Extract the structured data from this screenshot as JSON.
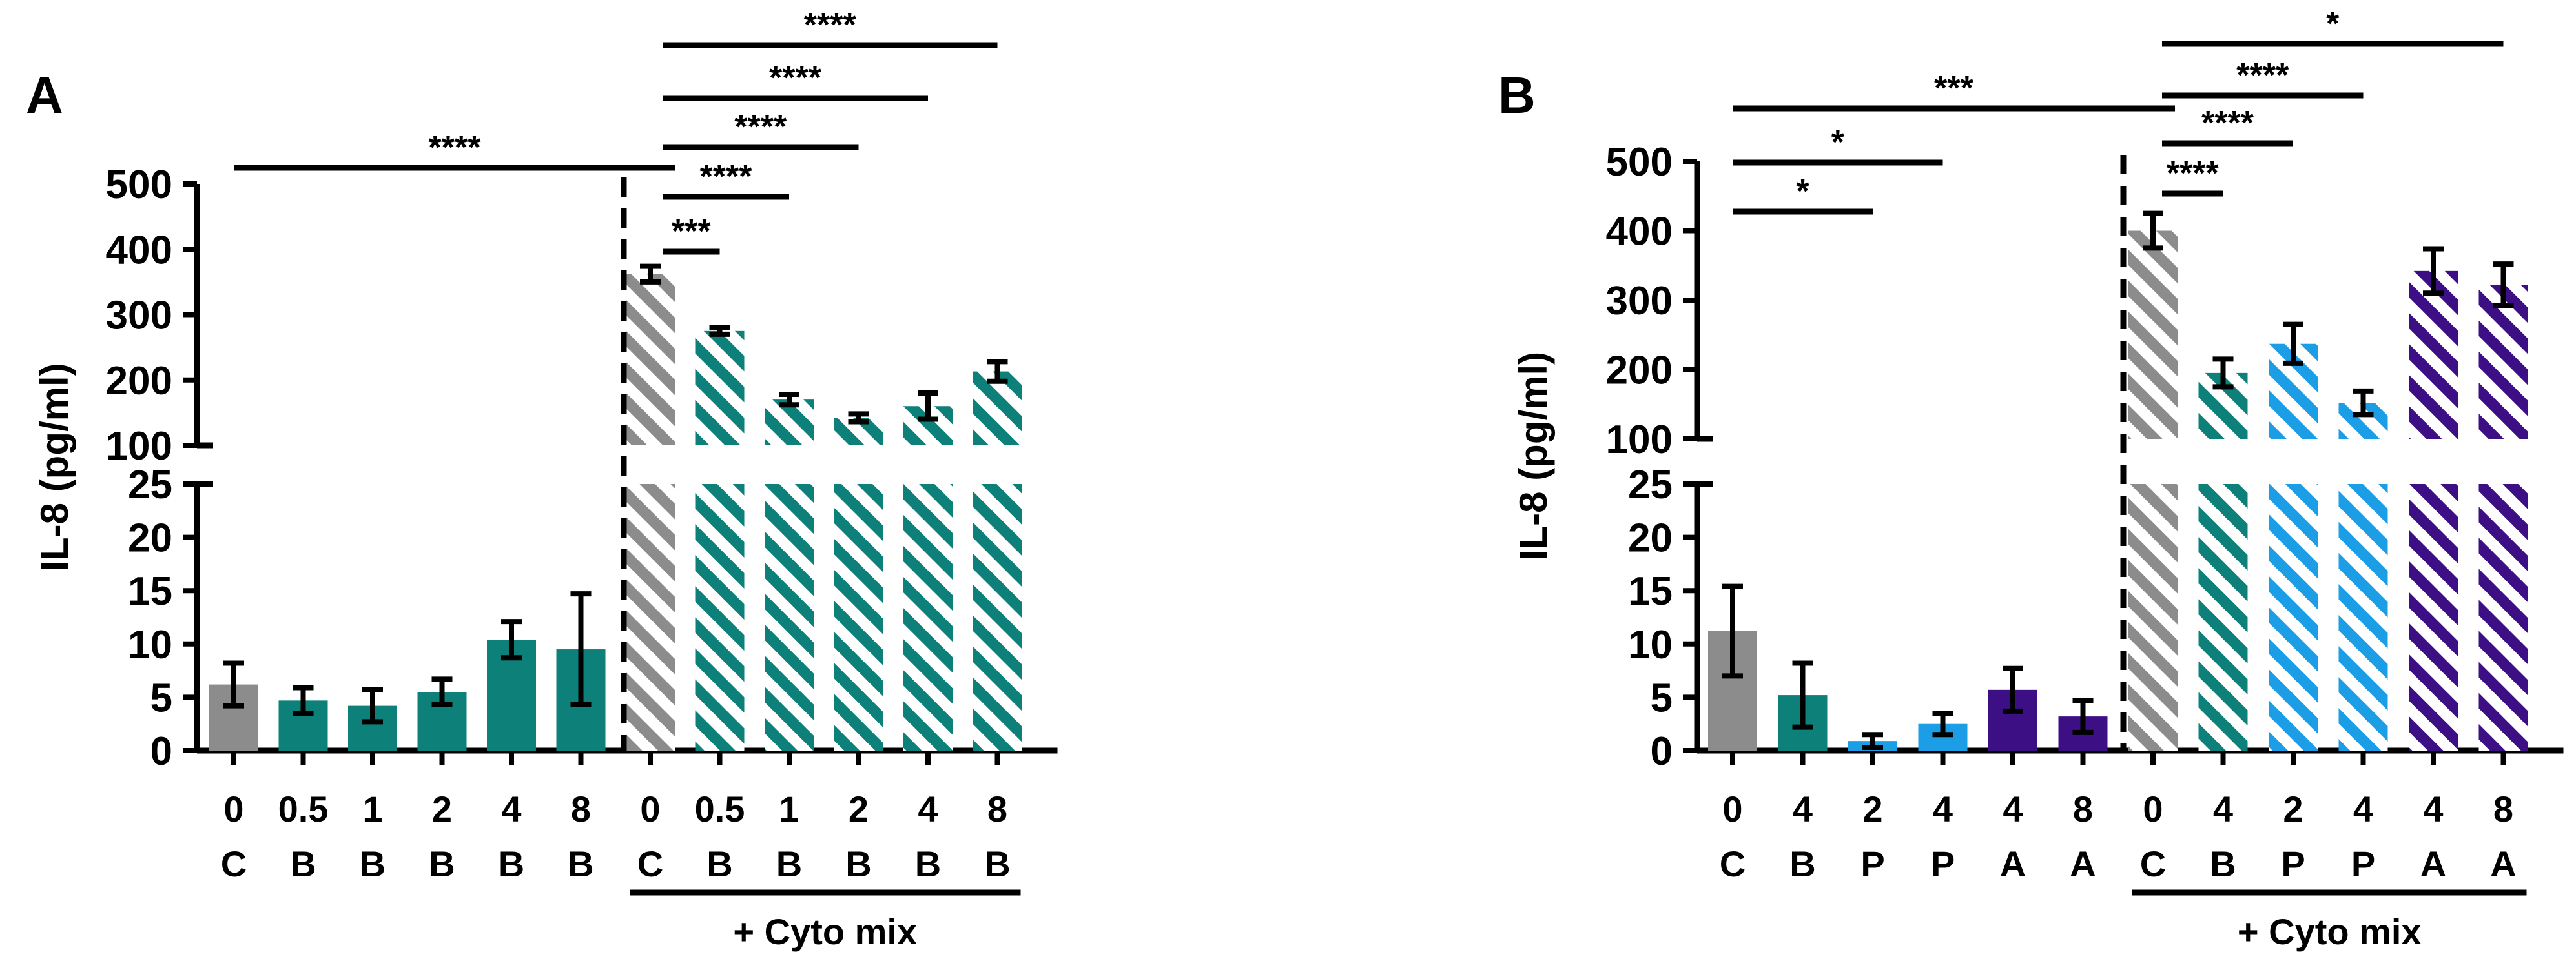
{
  "colors": {
    "control": "#8c8c8c",
    "B": "#0c8079",
    "P": "#1c9ee6",
    "A": "#3d0f85",
    "axis": "#000000"
  },
  "chart_data": [
    {
      "type": "bar",
      "panel_label": "A",
      "ylabel": "IL-8 (pg/ml)",
      "y_axis_break": {
        "lower_range": [
          0,
          25
        ],
        "upper_range": [
          100,
          500
        ]
      },
      "lower_ticks": [
        0,
        5,
        10,
        15,
        20,
        25
      ],
      "upper_ticks": [
        100,
        200,
        300,
        400,
        500
      ],
      "categories": [
        {
          "dose": "0",
          "treatment": "C",
          "value": 6.2,
          "err": 2.0,
          "pattern": "solid",
          "group": "control"
        },
        {
          "dose": "0.5",
          "treatment": "B",
          "value": 4.7,
          "err": 1.2,
          "pattern": "solid",
          "group": "B"
        },
        {
          "dose": "1",
          "treatment": "B",
          "value": 4.2,
          "err": 1.5,
          "pattern": "solid",
          "group": "B"
        },
        {
          "dose": "2",
          "treatment": "B",
          "value": 5.5,
          "err": 1.2,
          "pattern": "solid",
          "group": "B"
        },
        {
          "dose": "4",
          "treatment": "B",
          "value": 10.4,
          "err": 1.7,
          "pattern": "solid",
          "group": "B"
        },
        {
          "dose": "8",
          "treatment": "B",
          "value": 9.5,
          "err": 5.2,
          "pattern": "solid",
          "group": "B"
        },
        {
          "dose": "0",
          "treatment": "C",
          "value": 362,
          "err": 12,
          "pattern": "hatched",
          "group": "control"
        },
        {
          "dose": "0.5",
          "treatment": "B",
          "value": 275,
          "err": 5,
          "pattern": "hatched",
          "group": "B"
        },
        {
          "dose": "1",
          "treatment": "B",
          "value": 170,
          "err": 8,
          "pattern": "hatched",
          "group": "B"
        },
        {
          "dose": "2",
          "treatment": "B",
          "value": 142,
          "err": 6,
          "pattern": "hatched",
          "group": "B"
        },
        {
          "dose": "4",
          "treatment": "B",
          "value": 160,
          "err": 20,
          "pattern": "hatched",
          "group": "B"
        },
        {
          "dose": "8",
          "treatment": "B",
          "value": 213,
          "err": 15,
          "pattern": "hatched",
          "group": "B"
        }
      ],
      "group_label": "+ Cyto mix",
      "significance": [
        {
          "from": 0,
          "to": 6,
          "label": "****"
        },
        {
          "from": 6,
          "to": 7,
          "label": "***"
        },
        {
          "from": 6,
          "to": 8,
          "label": "****"
        },
        {
          "from": 6,
          "to": 9,
          "label": "****"
        },
        {
          "from": 6,
          "to": 10,
          "label": "****"
        },
        {
          "from": 6,
          "to": 11,
          "label": "****"
        }
      ]
    },
    {
      "type": "bar",
      "panel_label": "B",
      "ylabel": "IL-8 (pg/ml)",
      "y_axis_break": {
        "lower_range": [
          0,
          25
        ],
        "upper_range": [
          100,
          500
        ]
      },
      "lower_ticks": [
        0,
        5,
        10,
        15,
        20,
        25
      ],
      "upper_ticks": [
        100,
        200,
        300,
        400,
        500
      ],
      "categories": [
        {
          "dose": "0",
          "treatment": "C",
          "value": 11.2,
          "err": 4.2,
          "pattern": "solid",
          "group": "control"
        },
        {
          "dose": "4",
          "treatment": "B",
          "value": 5.2,
          "err": 3.0,
          "pattern": "solid",
          "group": "B"
        },
        {
          "dose": "2",
          "treatment": "P",
          "value": 0.9,
          "err": 0.6,
          "pattern": "solid",
          "group": "P"
        },
        {
          "dose": "4",
          "treatment": "P",
          "value": 2.5,
          "err": 1.0,
          "pattern": "solid",
          "group": "P"
        },
        {
          "dose": "4",
          "treatment": "A",
          "value": 5.7,
          "err": 2.0,
          "pattern": "solid",
          "group": "A"
        },
        {
          "dose": "8",
          "treatment": "A",
          "value": 3.2,
          "err": 1.5,
          "pattern": "solid",
          "group": "A"
        },
        {
          "dose": "0",
          "treatment": "C",
          "value": 400,
          "err": 25,
          "pattern": "hatched",
          "group": "control"
        },
        {
          "dose": "4",
          "treatment": "B",
          "value": 195,
          "err": 20,
          "pattern": "hatched",
          "group": "B"
        },
        {
          "dose": "2",
          "treatment": "P",
          "value": 237,
          "err": 28,
          "pattern": "hatched",
          "group": "P"
        },
        {
          "dose": "4",
          "treatment": "P",
          "value": 152,
          "err": 17,
          "pattern": "hatched",
          "group": "P"
        },
        {
          "dose": "4",
          "treatment": "A",
          "value": 342,
          "err": 32,
          "pattern": "hatched",
          "group": "A"
        },
        {
          "dose": "8",
          "treatment": "A",
          "value": 322,
          "err": 30,
          "pattern": "hatched",
          "group": "A"
        }
      ],
      "group_label": "+ Cyto mix",
      "significance": [
        {
          "from": 0,
          "to": 2,
          "label": "*"
        },
        {
          "from": 0,
          "to": 3,
          "label": "*"
        },
        {
          "from": 0,
          "to": 6,
          "label": "***"
        },
        {
          "from": 6,
          "to": 7,
          "label": "****"
        },
        {
          "from": 6,
          "to": 8,
          "label": "****"
        },
        {
          "from": 6,
          "to": 9,
          "label": "****"
        },
        {
          "from": 6,
          "to": 11,
          "label": "*"
        }
      ]
    }
  ]
}
